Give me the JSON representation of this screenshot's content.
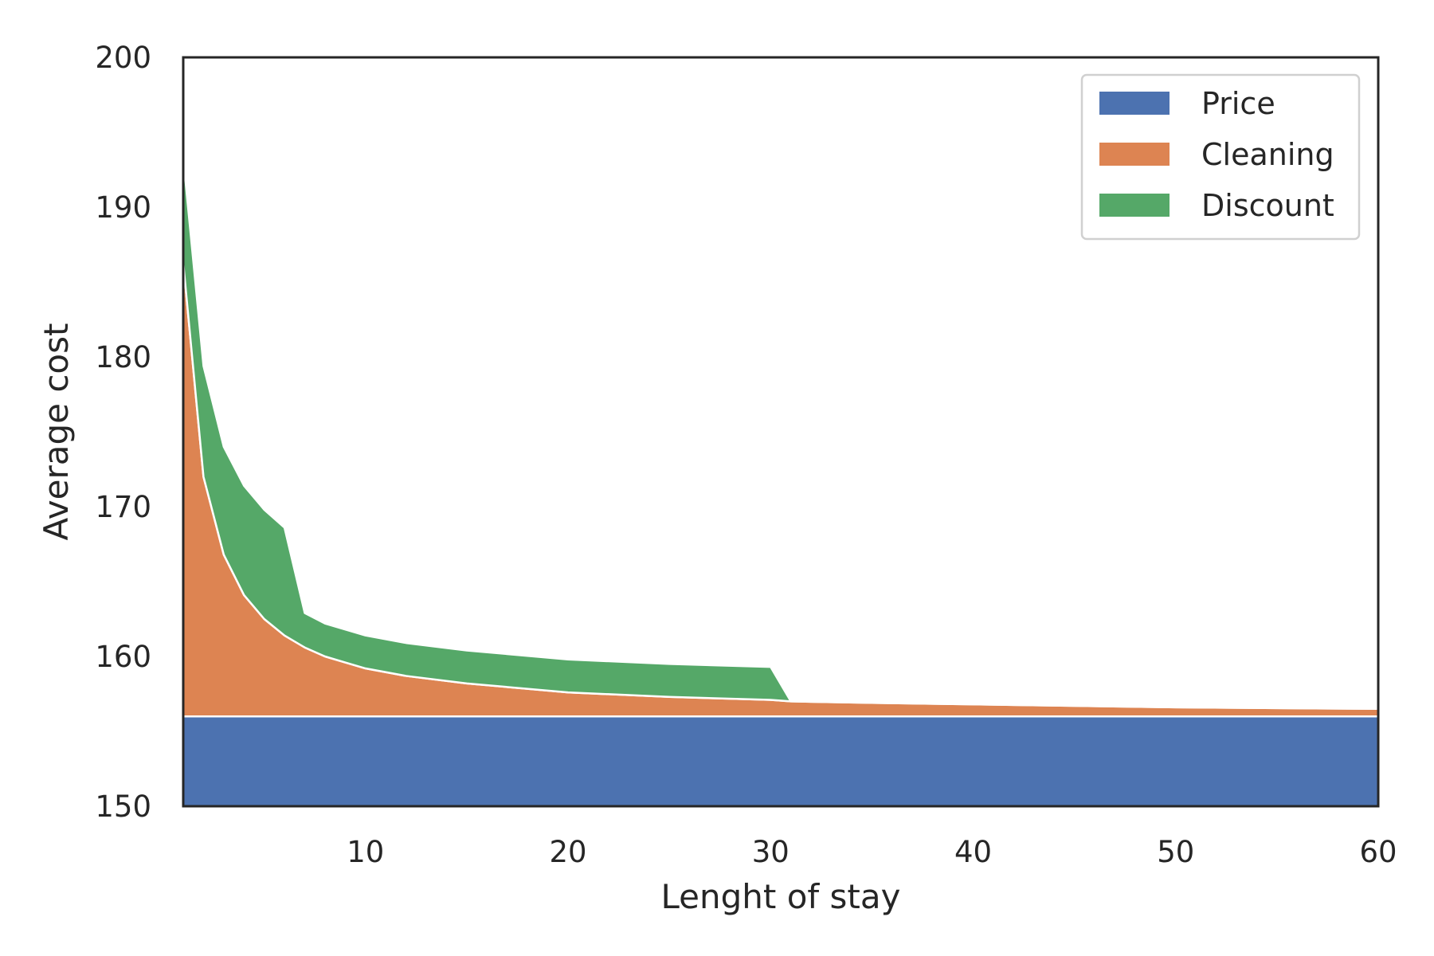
{
  "chart_data": {
    "type": "area",
    "stacked": true,
    "title": "",
    "xlabel": "Lenght of stay",
    "ylabel": "Average cost",
    "xlim": [
      1,
      60
    ],
    "ylim": [
      150,
      200
    ],
    "x_ticks": [
      10,
      20,
      30,
      40,
      50,
      60
    ],
    "y_ticks": [
      150,
      160,
      170,
      180,
      190,
      200
    ],
    "x_tick_labels": [
      "10",
      "20",
      "30",
      "40",
      "50",
      "60"
    ],
    "y_tick_labels": [
      "150",
      "160",
      "170",
      "180",
      "190",
      "200"
    ],
    "grid": false,
    "legend_position": "top-right",
    "series": [
      {
        "name": "Price",
        "color": "#4c72b0",
        "points": [
          [
            1,
            156.0
          ],
          [
            60,
            156.0
          ]
        ]
      },
      {
        "name": "Cleaning",
        "color": "#dd8452",
        "points": [
          [
            1,
            30.3
          ],
          [
            2,
            16.0
          ],
          [
            3,
            10.8
          ],
          [
            4,
            8.1
          ],
          [
            5,
            6.5
          ],
          [
            6,
            5.4
          ],
          [
            7,
            4.6
          ],
          [
            8,
            4.0
          ],
          [
            9,
            3.6
          ],
          [
            10,
            3.2
          ],
          [
            12,
            2.7
          ],
          [
            15,
            2.2
          ],
          [
            20,
            1.6
          ],
          [
            25,
            1.3
          ],
          [
            30,
            1.1
          ],
          [
            31,
            1.0
          ],
          [
            35,
            0.9
          ],
          [
            40,
            0.8
          ],
          [
            45,
            0.7
          ],
          [
            50,
            0.6
          ],
          [
            55,
            0.55
          ],
          [
            60,
            0.5
          ]
        ]
      },
      {
        "name": "Discount",
        "color": "#55a868",
        "points": [
          [
            1,
            7.0
          ],
          [
            2,
            7.4
          ],
          [
            3,
            7.2
          ],
          [
            4,
            7.3
          ],
          [
            5,
            7.3
          ],
          [
            6,
            7.2
          ],
          [
            7,
            2.3
          ],
          [
            8,
            2.2
          ],
          [
            10,
            2.2
          ],
          [
            15,
            2.2
          ],
          [
            20,
            2.2
          ],
          [
            25,
            2.2
          ],
          [
            30,
            2.2
          ],
          [
            31,
            0.0
          ],
          [
            60,
            0.0
          ]
        ]
      }
    ]
  }
}
